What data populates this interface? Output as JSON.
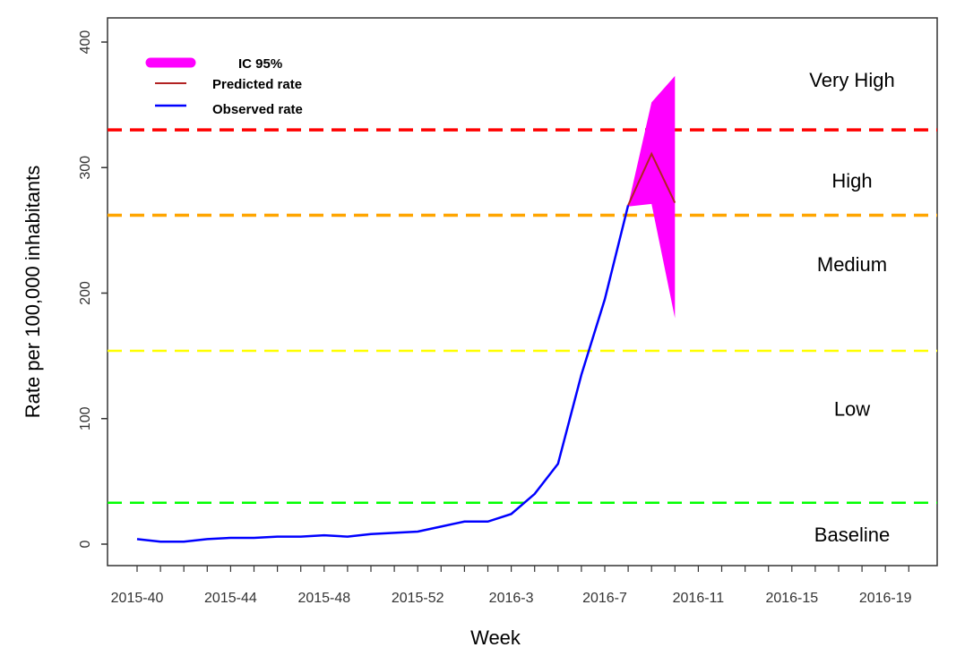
{
  "chart_data": {
    "type": "line",
    "xlabel": "Week",
    "ylabel": "Rate per 100,000 inhabitants",
    "ylim": [
      0,
      400
    ],
    "y_ticks": [
      0,
      100,
      200,
      300,
      400
    ],
    "x_tick_labels": [
      "2015-40",
      "2015-44",
      "2015-48",
      "2015-52",
      "2016-3",
      "2016-7",
      "2016-11",
      "2016-15",
      "2016-19"
    ],
    "legend": {
      "placement": "top-left",
      "entries": [
        {
          "label": "IC 95%",
          "color": "#ff00ff"
        },
        {
          "label": "Predicted rate",
          "color": "#b22222"
        },
        {
          "label": "Observed rate",
          "color": "#0000ff"
        }
      ]
    },
    "thresholds": [
      {
        "value": 330,
        "color": "#ff0000"
      },
      {
        "value": 262,
        "color": "#ffa500"
      },
      {
        "value": 154,
        "color": "#ffff00"
      },
      {
        "value": 33,
        "color": "#00ff00"
      }
    ],
    "zone_labels": [
      {
        "label": "Very High",
        "y": 370
      },
      {
        "label": "High",
        "y": 290
      },
      {
        "label": "Medium",
        "y": 223
      },
      {
        "label": "Low",
        "y": 108
      },
      {
        "label": "Baseline",
        "y": 8
      }
    ],
    "series": [
      {
        "name": "Observed rate",
        "color": "#0000ff",
        "x": [
          "2015-40",
          "2015-41",
          "2015-42",
          "2015-43",
          "2015-44",
          "2015-45",
          "2015-46",
          "2015-47",
          "2015-48",
          "2015-49",
          "2015-50",
          "2015-51",
          "2015-52",
          "2015-53",
          "2016-1",
          "2016-2",
          "2016-3",
          "2016-4",
          "2016-5",
          "2016-6",
          "2016-7",
          "2016-8"
        ],
        "values": [
          4,
          2,
          2,
          4,
          5,
          5,
          6,
          6,
          7,
          6,
          8,
          9,
          10,
          14,
          18,
          18,
          24,
          40,
          64,
          135,
          195,
          270
        ]
      },
      {
        "name": "Predicted rate",
        "color": "#b22222",
        "x": [
          "2016-8",
          "2016-9",
          "2016-10"
        ],
        "values": [
          270,
          311,
          272
        ]
      }
    ],
    "confidence_band": {
      "name": "IC 95%",
      "color": "#ff00ff",
      "x": [
        "2016-8",
        "2016-9",
        "2016-10"
      ],
      "lower": [
        269,
        271,
        180
      ],
      "upper": [
        270,
        352,
        373
      ]
    }
  }
}
